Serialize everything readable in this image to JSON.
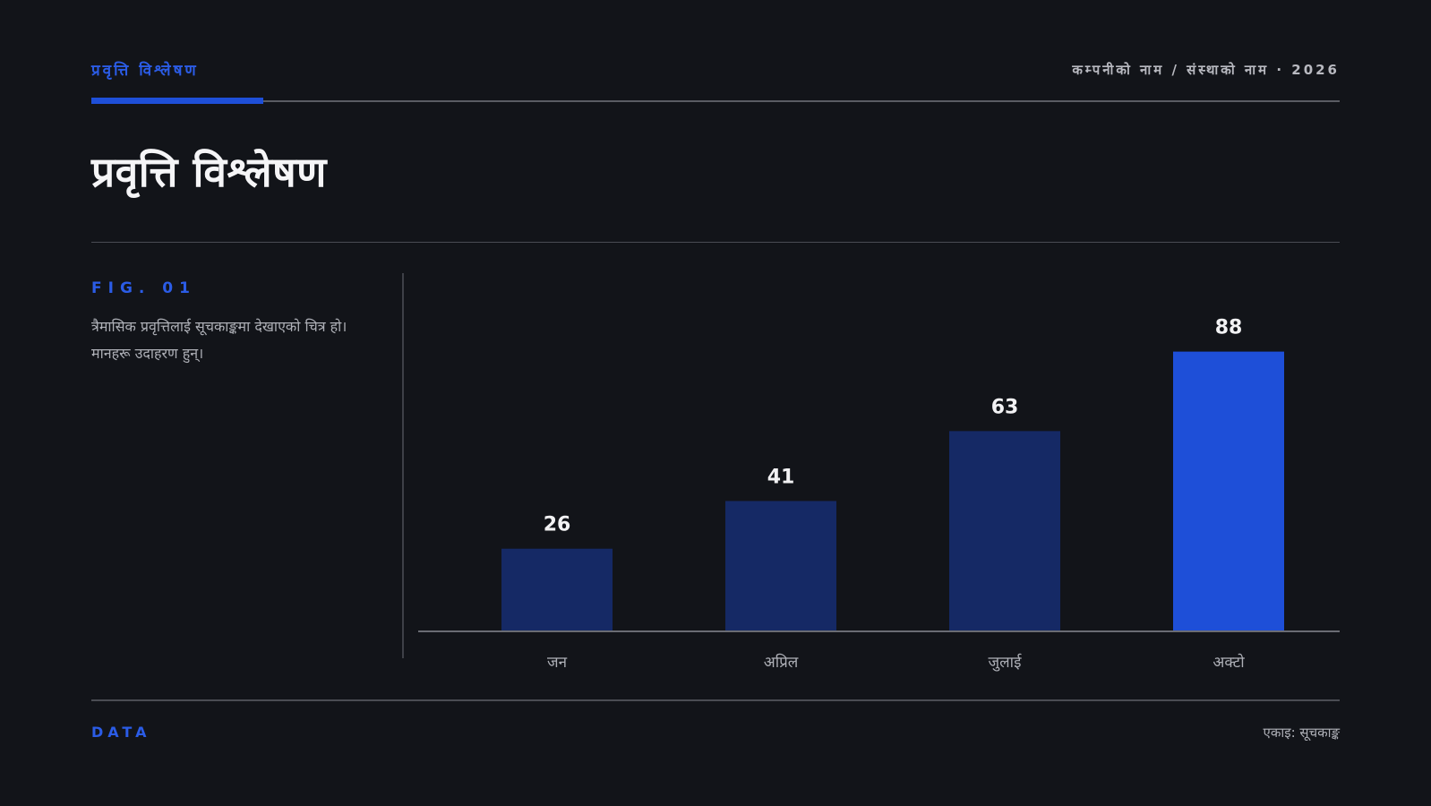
{
  "header": {
    "kicker": "प्रवृत्ति विश्लेषण",
    "org": "कम्पनीको नाम / संस्थाको नाम · 2026"
  },
  "title": "प्रवृत्ति विश्लेषण",
  "figure": {
    "label": "FIG. 01",
    "description": "त्रैमासिक प्रवृत्तिलाई सूचकाङ्कमा देखाएको चित्र हो। मानहरू उदाहरण हुन्।"
  },
  "footer": {
    "left": "DATA",
    "right": "एकाइ: सूचकाङ्क"
  },
  "colors": {
    "accent": "#1e4fd8",
    "bar_default": "#152965",
    "bar_highlight": "#1e4fd8",
    "axis": "#6a6c73",
    "value_label": "#f2f2f4",
    "category_label": "#aeb0b7"
  },
  "chart_data": {
    "type": "bar",
    "categories": [
      "जन",
      "अप्रिल",
      "जुलाई",
      "अक्टो"
    ],
    "values": [
      26,
      41,
      63,
      88
    ],
    "highlight_index": 3,
    "ylim": [
      0,
      100
    ],
    "grid": false,
    "data_labels": true
  }
}
